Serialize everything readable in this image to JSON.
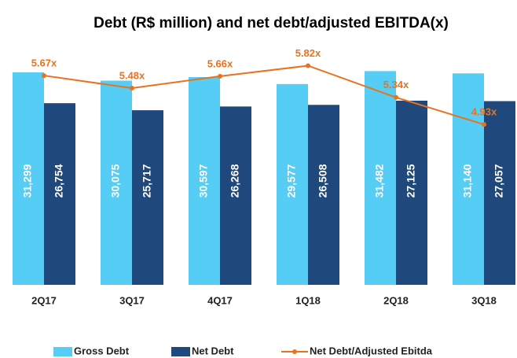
{
  "chart_data": {
    "type": "bar",
    "title": "Debt (R$ million) and net debt/adjusted EBITDA(x)",
    "categories": [
      "2Q17",
      "3Q17",
      "4Q17",
      "1Q18",
      "2Q18",
      "3Q18"
    ],
    "series": [
      {
        "name": "Gross Debt",
        "type": "bar",
        "color": "#55cdf5",
        "values": [
          31299,
          30075,
          30597,
          29577,
          31482,
          31140
        ],
        "value_labels": [
          "31,299",
          "30,075",
          "30,597",
          "29,577",
          "31,482",
          "31,140"
        ]
      },
      {
        "name": "Net Debt",
        "type": "bar",
        "color": "#1f497d",
        "values": [
          26754,
          25717,
          26268,
          26508,
          27125,
          27057
        ],
        "value_labels": [
          "26,754",
          "25,717",
          "26,268",
          "26,508",
          "27,125",
          "27,057"
        ]
      },
      {
        "name": "Net Debt/Adjusted Ebitda",
        "type": "line",
        "axis": "y2",
        "color": "#e8731e",
        "values": [
          5.67,
          5.48,
          5.66,
          5.82,
          5.34,
          4.93
        ],
        "value_labels": [
          "5.67x",
          "5.48x",
          "5.66x",
          "5.82x",
          "5.34x",
          "4.93x"
        ]
      }
    ],
    "ylim": [
      0,
      35000
    ],
    "y2lim": [
      2.5,
      6.1
    ],
    "legend": "bottom"
  }
}
